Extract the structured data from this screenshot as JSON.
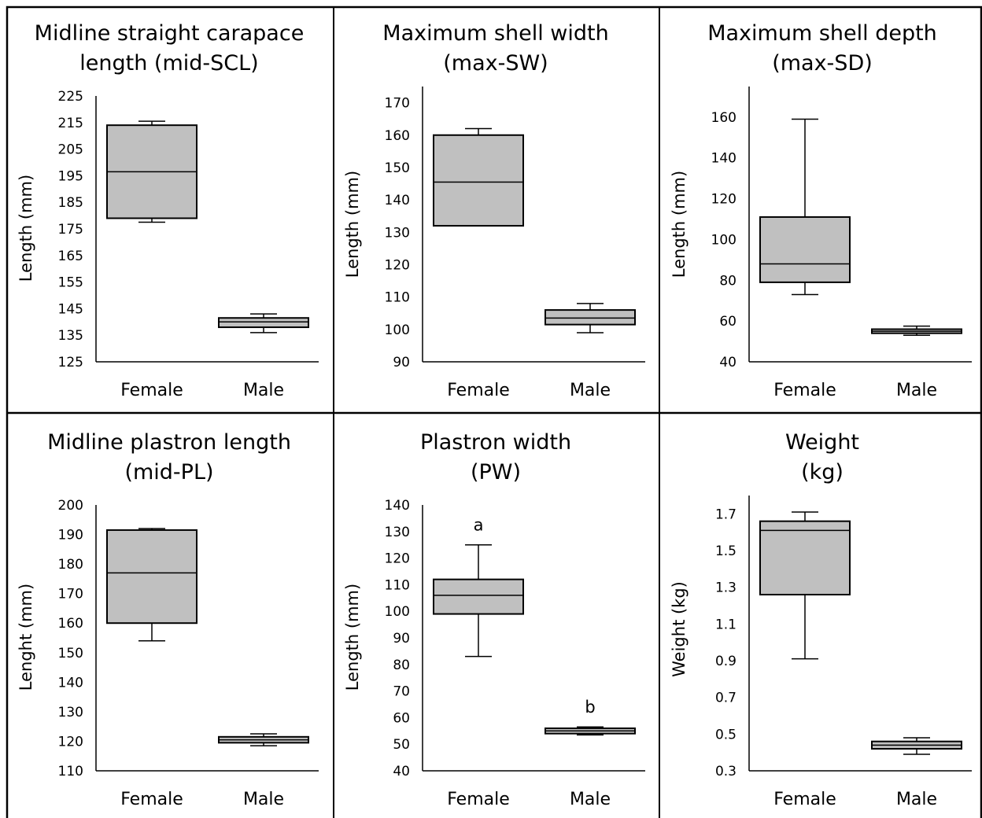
{
  "colors": {
    "box_fill": "#c0c0c0",
    "stroke": "#000000",
    "background": "#ffffff"
  },
  "chart_data": [
    {
      "type": "box",
      "title": [
        "Midline straight carapace",
        "length (mid-SCL)"
      ],
      "ylabel": "Length (mm)",
      "ylim": [
        125,
        225
      ],
      "yticks": [
        125,
        135,
        145,
        155,
        165,
        175,
        185,
        195,
        205,
        215,
        225
      ],
      "categories": [
        "Female",
        "Male"
      ],
      "boxes": [
        {
          "category": "Female",
          "min": 177.5,
          "q1": 179,
          "median": 196.5,
          "q3": 214,
          "max": 215.5
        },
        {
          "category": "Male",
          "min": 136,
          "q1": 138,
          "median": 140,
          "q3": 141.5,
          "max": 143
        }
      ],
      "annotations": []
    },
    {
      "type": "box",
      "title": [
        "Maximum shell width",
        "(max-SW)"
      ],
      "ylabel": "Length (mm)",
      "ylim": [
        90,
        175
      ],
      "yticks": [
        90,
        100,
        110,
        120,
        130,
        140,
        150,
        160,
        170
      ],
      "categories": [
        "Female",
        "Male"
      ],
      "boxes": [
        {
          "category": "Female",
          "min": 132,
          "q1": 132,
          "median": 145.5,
          "q3": 160,
          "max": 162
        },
        {
          "category": "Male",
          "min": 99,
          "q1": 101.5,
          "median": 103.5,
          "q3": 106,
          "max": 108
        }
      ],
      "annotations": []
    },
    {
      "type": "box",
      "title": [
        "Maximum shell depth",
        "(max-SD)"
      ],
      "ylabel": "Length (mm)",
      "ylim": [
        40,
        175
      ],
      "yticks": [
        40,
        60,
        80,
        100,
        120,
        140,
        160
      ],
      "categories": [
        "Female",
        "Male"
      ],
      "boxes": [
        {
          "category": "Female",
          "min": 73,
          "q1": 79,
          "median": 88,
          "q3": 111,
          "max": 159
        },
        {
          "category": "Male",
          "min": 53,
          "q1": 54,
          "median": 55,
          "q3": 56,
          "max": 57.5
        }
      ],
      "annotations": []
    },
    {
      "type": "box",
      "title": [
        "Midline plastron length",
        "(mid-PL)"
      ],
      "ylabel": "Lenght (mm)",
      "ylim": [
        110,
        200
      ],
      "yticks": [
        110,
        120,
        130,
        140,
        150,
        160,
        170,
        180,
        190,
        200
      ],
      "categories": [
        "Female",
        "Male"
      ],
      "boxes": [
        {
          "category": "Female",
          "min": 154,
          "q1": 160,
          "median": 177,
          "q3": 191.5,
          "max": 192
        },
        {
          "category": "Male",
          "min": 118.5,
          "q1": 119.5,
          "median": 120.5,
          "q3": 121.5,
          "max": 122.5
        }
      ],
      "annotations": []
    },
    {
      "type": "box",
      "title": [
        "Plastron width",
        "(PW)"
      ],
      "ylabel": "Length (mm)",
      "ylim": [
        40,
        140
      ],
      "yticks": [
        40,
        50,
        60,
        70,
        80,
        90,
        100,
        110,
        120,
        130,
        140
      ],
      "categories": [
        "Female",
        "Male"
      ],
      "boxes": [
        {
          "category": "Female",
          "min": 83,
          "q1": 99,
          "median": 106,
          "q3": 112,
          "max": 125
        },
        {
          "category": "Male",
          "min": 53.5,
          "q1": 54,
          "median": 55,
          "q3": 56,
          "max": 56.5
        }
      ],
      "annotations": [
        {
          "category": "Female",
          "text": "a",
          "value": 125
        },
        {
          "category": "Male",
          "text": "b",
          "value": 56.5
        }
      ]
    },
    {
      "type": "box",
      "title": [
        "Weight",
        "(kg)"
      ],
      "ylabel": "Weight (kg)",
      "ylim": [
        0.3,
        1.8
      ],
      "yticks": [
        "0.3",
        "0.5",
        "0.7",
        "0.9",
        "1.1",
        "1.3",
        "1.5",
        "1.7"
      ],
      "categories": [
        "Female",
        "Male"
      ],
      "boxes": [
        {
          "category": "Female",
          "min": 0.91,
          "q1": 1.26,
          "median": 1.61,
          "q3": 1.66,
          "max": 1.71
        },
        {
          "category": "Male",
          "min": 0.39,
          "q1": 0.42,
          "median": 0.44,
          "q3": 0.46,
          "max": 0.48
        }
      ],
      "annotations": []
    }
  ]
}
